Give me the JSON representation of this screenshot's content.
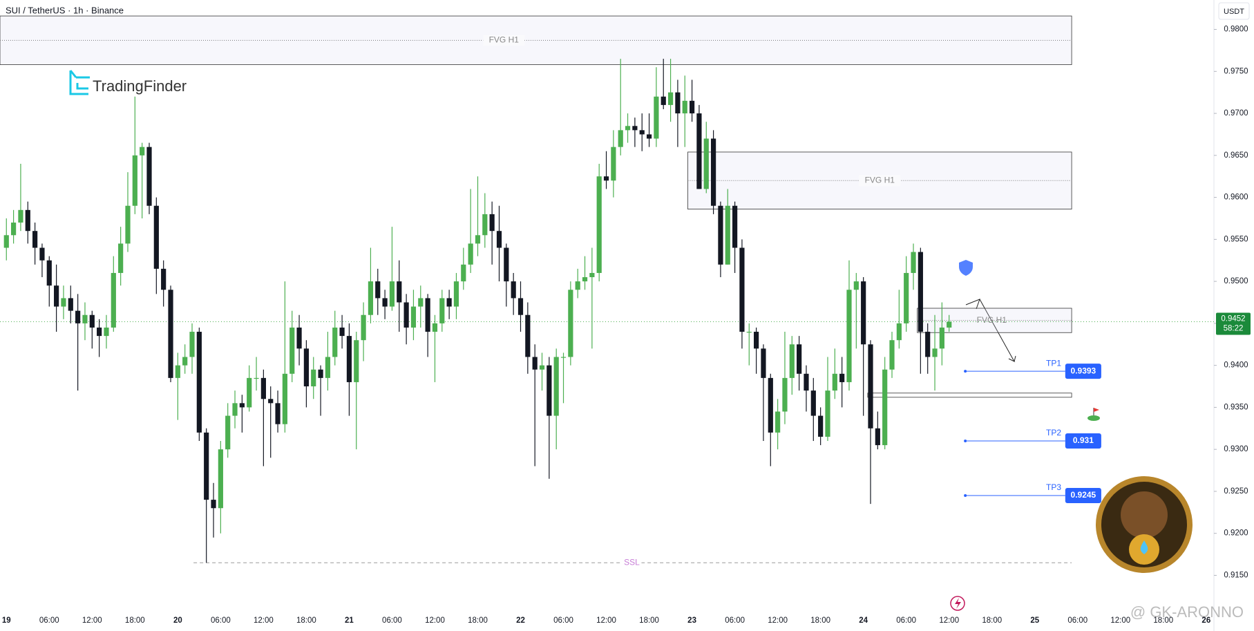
{
  "chart_data": {
    "type": "candlestick",
    "title": "SUI / TetherUS · 1h · Binance",
    "currency": "USDT",
    "brand": "TradingFinder",
    "watermark": "@ GK-ARONNO",
    "bull_color": "#4caf50",
    "bear_color": "#131722",
    "ylim": [
      0.9115,
      0.9835
    ],
    "yticks": [
      {
        "value": 0.98,
        "label": "0.9800"
      },
      {
        "value": 0.975,
        "label": "0.9750"
      },
      {
        "value": 0.97,
        "label": "0.9700"
      },
      {
        "value": 0.965,
        "label": "0.9650"
      },
      {
        "value": 0.96,
        "label": "0.9600"
      },
      {
        "value": 0.955,
        "label": "0.9550"
      },
      {
        "value": 0.95,
        "label": "0.9500"
      },
      {
        "value": 0.945,
        "label": "0.9450"
      },
      {
        "value": 0.94,
        "label": "0.9400"
      },
      {
        "value": 0.935,
        "label": "0.9350"
      },
      {
        "value": 0.93,
        "label": "0.9300"
      },
      {
        "value": 0.925,
        "label": "0.9250"
      },
      {
        "value": 0.92,
        "label": "0.9200"
      },
      {
        "value": 0.915,
        "label": "0.9150"
      }
    ],
    "x_labels": [
      "19",
      "06:00",
      "12:00",
      "18:00",
      "20",
      "06:00",
      "12:00",
      "18:00",
      "21",
      "06:00",
      "12:00",
      "18:00",
      "22",
      "06:00",
      "12:00",
      "18:00",
      "23",
      "06:00",
      "12:00",
      "18:00",
      "24",
      "06:00",
      "12:00",
      "18:00",
      "25",
      "06:00",
      "12:00",
      "18:00",
      "26"
    ],
    "candles": [
      [
        0.954,
        0.9575,
        0.9525,
        0.9555
      ],
      [
        0.9555,
        0.9585,
        0.9545,
        0.957
      ],
      [
        0.957,
        0.964,
        0.956,
        0.9585
      ],
      [
        0.9585,
        0.9595,
        0.9545,
        0.956
      ],
      [
        0.956,
        0.957,
        0.952,
        0.954
      ],
      [
        0.954,
        0.9545,
        0.9505,
        0.9525
      ],
      [
        0.9525,
        0.953,
        0.947,
        0.9495
      ],
      [
        0.9495,
        0.952,
        0.944,
        0.947
      ],
      [
        0.947,
        0.9495,
        0.9455,
        0.948
      ],
      [
        0.948,
        0.9495,
        0.945,
        0.9465
      ],
      [
        0.9465,
        0.9485,
        0.937,
        0.945
      ],
      [
        0.945,
        0.9475,
        0.943,
        0.946
      ],
      [
        0.946,
        0.9465,
        0.942,
        0.9445
      ],
      [
        0.9445,
        0.9455,
        0.941,
        0.9435
      ],
      [
        0.9435,
        0.946,
        0.942,
        0.9445
      ],
      [
        0.9445,
        0.953,
        0.944,
        0.951
      ],
      [
        0.951,
        0.9565,
        0.9495,
        0.9545
      ],
      [
        0.9545,
        0.963,
        0.9535,
        0.959
      ],
      [
        0.959,
        0.972,
        0.958,
        0.965
      ],
      [
        0.965,
        0.9665,
        0.9575,
        0.966
      ],
      [
        0.966,
        0.9665,
        0.958,
        0.959
      ],
      [
        0.959,
        0.96,
        0.9485,
        0.9515
      ],
      [
        0.9515,
        0.9525,
        0.947,
        0.949
      ],
      [
        0.949,
        0.9495,
        0.938,
        0.9385
      ],
      [
        0.9385,
        0.9415,
        0.9335,
        0.94
      ],
      [
        0.94,
        0.9425,
        0.939,
        0.941
      ],
      [
        0.941,
        0.945,
        0.939,
        0.944
      ],
      [
        0.944,
        0.9445,
        0.931,
        0.932
      ],
      [
        0.932,
        0.9325,
        0.9165,
        0.924
      ],
      [
        0.924,
        0.926,
        0.9195,
        0.923
      ],
      [
        0.923,
        0.931,
        0.92,
        0.93
      ],
      [
        0.93,
        0.9355,
        0.929,
        0.934
      ],
      [
        0.934,
        0.937,
        0.9325,
        0.9355
      ],
      [
        0.9355,
        0.9365,
        0.932,
        0.935
      ],
      [
        0.935,
        0.94,
        0.9345,
        0.9385
      ],
      [
        0.9385,
        0.941,
        0.937,
        0.9385
      ],
      [
        0.9385,
        0.9395,
        0.928,
        0.936
      ],
      [
        0.936,
        0.9375,
        0.929,
        0.9355
      ],
      [
        0.9355,
        0.937,
        0.932,
        0.933
      ],
      [
        0.933,
        0.95,
        0.932,
        0.939
      ],
      [
        0.939,
        0.9465,
        0.938,
        0.9445
      ],
      [
        0.9445,
        0.946,
        0.94,
        0.942
      ],
      [
        0.942,
        0.943,
        0.935,
        0.9375
      ],
      [
        0.9375,
        0.941,
        0.936,
        0.9395
      ],
      [
        0.9395,
        0.94,
        0.934,
        0.9385
      ],
      [
        0.9385,
        0.944,
        0.937,
        0.941
      ],
      [
        0.941,
        0.9465,
        0.94,
        0.9445
      ],
      [
        0.9445,
        0.946,
        0.942,
        0.9435
      ],
      [
        0.9435,
        0.945,
        0.934,
        0.938
      ],
      [
        0.938,
        0.944,
        0.93,
        0.943
      ],
      [
        0.943,
        0.9475,
        0.9405,
        0.946
      ],
      [
        0.946,
        0.954,
        0.945,
        0.95
      ],
      [
        0.95,
        0.9515,
        0.946,
        0.948
      ],
      [
        0.948,
        0.949,
        0.9455,
        0.947
      ],
      [
        0.947,
        0.9565,
        0.9465,
        0.95
      ],
      [
        0.95,
        0.9525,
        0.944,
        0.9475
      ],
      [
        0.9475,
        0.9485,
        0.9425,
        0.9445
      ],
      [
        0.9445,
        0.949,
        0.943,
        0.947
      ],
      [
        0.947,
        0.9495,
        0.9445,
        0.948
      ],
      [
        0.948,
        0.9485,
        0.941,
        0.944
      ],
      [
        0.944,
        0.946,
        0.938,
        0.945
      ],
      [
        0.945,
        0.949,
        0.944,
        0.948
      ],
      [
        0.948,
        0.949,
        0.9455,
        0.947
      ],
      [
        0.947,
        0.951,
        0.9455,
        0.95
      ],
      [
        0.95,
        0.954,
        0.949,
        0.952
      ],
      [
        0.952,
        0.961,
        0.951,
        0.9545
      ],
      [
        0.9545,
        0.9625,
        0.953,
        0.9555
      ],
      [
        0.9555,
        0.9605,
        0.954,
        0.958
      ],
      [
        0.958,
        0.9595,
        0.952,
        0.956
      ],
      [
        0.956,
        0.959,
        0.95,
        0.954
      ],
      [
        0.954,
        0.9545,
        0.947,
        0.95
      ],
      [
        0.95,
        0.951,
        0.946,
        0.948
      ],
      [
        0.948,
        0.95,
        0.944,
        0.946
      ],
      [
        0.946,
        0.9475,
        0.939,
        0.941
      ],
      [
        0.941,
        0.9425,
        0.928,
        0.9395
      ],
      [
        0.9395,
        0.9415,
        0.937,
        0.94
      ],
      [
        0.94,
        0.941,
        0.9265,
        0.934
      ],
      [
        0.934,
        0.942,
        0.93,
        0.941
      ],
      [
        0.941,
        0.9415,
        0.9355,
        0.941
      ],
      [
        0.941,
        0.95,
        0.94,
        0.949
      ],
      [
        0.949,
        0.9515,
        0.948,
        0.95
      ],
      [
        0.95,
        0.953,
        0.949,
        0.9505
      ],
      [
        0.9505,
        0.954,
        0.942,
        0.951
      ],
      [
        0.951,
        0.964,
        0.95,
        0.9625
      ],
      [
        0.9625,
        0.9655,
        0.961,
        0.962
      ],
      [
        0.962,
        0.968,
        0.96,
        0.966
      ],
      [
        0.966,
        0.9765,
        0.965,
        0.968
      ],
      [
        0.968,
        0.97,
        0.9665,
        0.9685
      ],
      [
        0.9685,
        0.9695,
        0.966,
        0.968
      ],
      [
        0.968,
        0.97,
        0.9655,
        0.9675
      ],
      [
        0.9675,
        0.97,
        0.966,
        0.967
      ],
      [
        0.967,
        0.9755,
        0.966,
        0.972
      ],
      [
        0.972,
        0.9765,
        0.9705,
        0.971
      ],
      [
        0.971,
        0.9765,
        0.969,
        0.9725
      ],
      [
        0.9725,
        0.974,
        0.966,
        0.97
      ],
      [
        0.97,
        0.9745,
        0.966,
        0.9715
      ],
      [
        0.9715,
        0.974,
        0.969,
        0.97
      ],
      [
        0.97,
        0.971,
        0.961,
        0.961
      ],
      [
        0.961,
        0.969,
        0.9605,
        0.967
      ],
      [
        0.967,
        0.968,
        0.958,
        0.959
      ],
      [
        0.959,
        0.9595,
        0.9505,
        0.952
      ],
      [
        0.952,
        0.961,
        0.952,
        0.959
      ],
      [
        0.959,
        0.9595,
        0.951,
        0.954
      ],
      [
        0.954,
        0.955,
        0.942,
        0.944
      ],
      [
        0.944,
        0.945,
        0.94,
        0.944
      ],
      [
        0.944,
        0.9445,
        0.939,
        0.942
      ],
      [
        0.942,
        0.9425,
        0.931,
        0.9385
      ],
      [
        0.9385,
        0.939,
        0.928,
        0.932
      ],
      [
        0.932,
        0.936,
        0.93,
        0.9345
      ],
      [
        0.9345,
        0.944,
        0.933,
        0.9385
      ],
      [
        0.9385,
        0.9435,
        0.9365,
        0.9425
      ],
      [
        0.9425,
        0.9435,
        0.937,
        0.939
      ],
      [
        0.939,
        0.94,
        0.9345,
        0.937
      ],
      [
        0.937,
        0.9385,
        0.931,
        0.934
      ],
      [
        0.934,
        0.935,
        0.9305,
        0.9315
      ],
      [
        0.9315,
        0.941,
        0.931,
        0.937
      ],
      [
        0.937,
        0.942,
        0.936,
        0.939
      ],
      [
        0.939,
        0.941,
        0.935,
        0.938
      ],
      [
        0.938,
        0.9525,
        0.937,
        0.949
      ],
      [
        0.949,
        0.951,
        0.942,
        0.95
      ],
      [
        0.95,
        0.9505,
        0.934,
        0.9425
      ],
      [
        0.9425,
        0.943,
        0.9235,
        0.9325
      ],
      [
        0.9325,
        0.9345,
        0.93,
        0.9305
      ],
      [
        0.9305,
        0.941,
        0.93,
        0.9395
      ],
      [
        0.9395,
        0.944,
        0.9385,
        0.943
      ],
      [
        0.943,
        0.949,
        0.942,
        0.945
      ],
      [
        0.945,
        0.953,
        0.944,
        0.951
      ],
      [
        0.951,
        0.9545,
        0.949,
        0.9535
      ],
      [
        0.9535,
        0.954,
        0.939,
        0.944
      ],
      [
        0.944,
        0.945,
        0.939,
        0.941
      ],
      [
        0.941,
        0.946,
        0.937,
        0.942
      ],
      [
        0.942,
        0.9475,
        0.94,
        0.9445
      ],
      [
        0.9445,
        0.946,
        0.944,
        0.9452
      ]
    ],
    "zones": [
      {
        "label": "FVG H1",
        "top": 0.9816,
        "bottom": 0.9758
      },
      {
        "label": "FVG H1",
        "top": 0.9654,
        "bottom": 0.9586
      },
      {
        "label": "FVG H1",
        "top": 0.9468,
        "bottom": 0.9439
      },
      {
        "top": 0.9367,
        "bottom": 0.9362
      }
    ],
    "ssl": {
      "label": "SSL",
      "value": 0.9165
    },
    "targets": [
      {
        "name": "TP1",
        "value": 0.9393
      },
      {
        "name": "TP2",
        "value": 0.931
      },
      {
        "name": "TP3",
        "value": 0.9245
      }
    ],
    "last_price": 0.9452,
    "countdown": "58:22"
  }
}
